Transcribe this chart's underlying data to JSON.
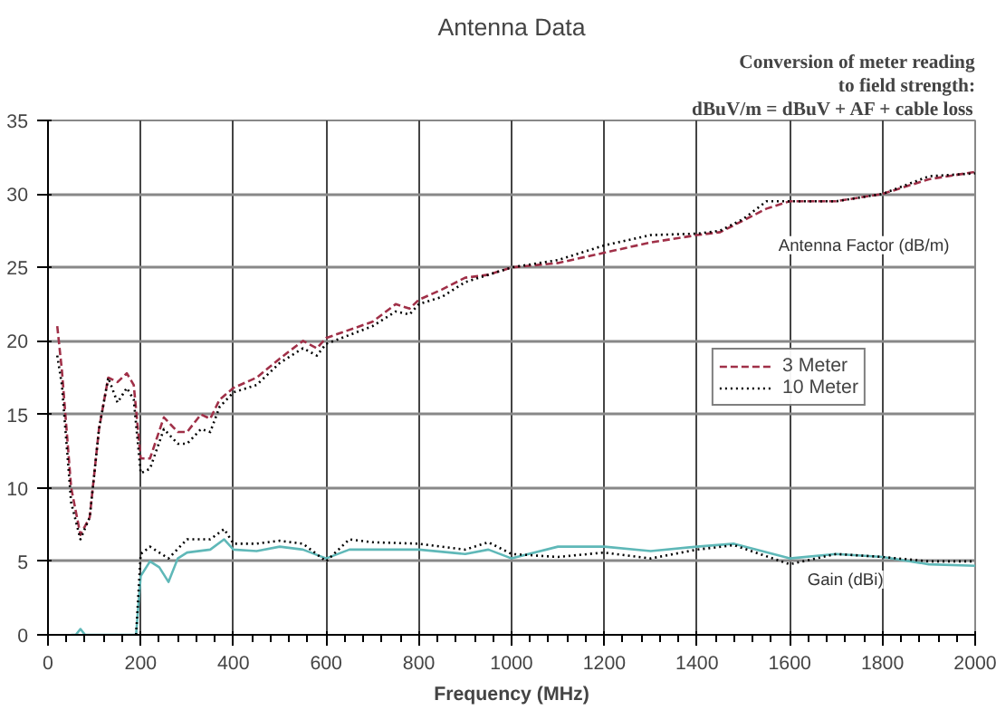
{
  "chart_data": {
    "type": "line",
    "title": "Antenna Data",
    "xlabel": "Frequency (MHz)",
    "xlim": [
      0,
      2000
    ],
    "ylim": [
      0,
      35
    ],
    "xticks": [
      0,
      200,
      400,
      600,
      800,
      1000,
      1200,
      1400,
      1600,
      1800,
      2000
    ],
    "yticks": [
      0,
      5,
      10,
      15,
      20,
      25,
      30,
      35
    ],
    "grid": true,
    "legend": "right",
    "marker": "none",
    "annotations": [
      "Conversion of meter reading",
      "to field strength:",
      "dBuV/m = dBuV + AF + cable loss",
      "Antenna Factor (dB/m)",
      "Gain (dBi)"
    ],
    "series": [
      {
        "name": "3 Meter",
        "color": "#a03048",
        "line_style": "dashed",
        "x": [
          20,
          30,
          50,
          70,
          90,
          110,
          130,
          150,
          170,
          185,
          200,
          220,
          250,
          280,
          300,
          330,
          350,
          370,
          400,
          450,
          500,
          550,
          580,
          600,
          700,
          750,
          780,
          800,
          850,
          900,
          950,
          1000,
          1100,
          1200,
          1300,
          1400,
          1450,
          1500,
          1550,
          1600,
          1700,
          1800,
          1900,
          2000
        ],
        "values": [
          21,
          18,
          10,
          6.8,
          8,
          14,
          17.5,
          17.2,
          17.8,
          17,
          12,
          12,
          14.8,
          13.8,
          13.8,
          15,
          14.7,
          16,
          16.8,
          17.5,
          18.8,
          20,
          19.5,
          20.2,
          21.3,
          22.5,
          22.2,
          22.8,
          23.5,
          24.3,
          24.5,
          25,
          25.3,
          26,
          26.7,
          27.2,
          27.4,
          28.2,
          29,
          29.5,
          29.5,
          30,
          31,
          31.5
        ]
      },
      {
        "name": "10 Meter",
        "color": "#000000",
        "line_style": "dotted",
        "x": [
          20,
          30,
          50,
          70,
          90,
          110,
          130,
          150,
          170,
          185,
          200,
          220,
          250,
          280,
          300,
          330,
          350,
          370,
          400,
          450,
          500,
          550,
          580,
          600,
          700,
          750,
          780,
          800,
          850,
          900,
          950,
          1000,
          1100,
          1200,
          1300,
          1400,
          1450,
          1500,
          1550,
          1600,
          1700,
          1800,
          1900,
          2000
        ],
        "values": [
          19,
          17,
          9,
          6.5,
          8,
          14,
          17.5,
          15.8,
          16.8,
          16,
          11,
          11.3,
          14,
          13,
          13,
          14,
          13.8,
          15.5,
          16.5,
          17,
          18.5,
          19.5,
          19,
          19.8,
          21,
          22,
          21.8,
          22.5,
          23,
          24,
          24.5,
          25,
          25.5,
          26.5,
          27.2,
          27.3,
          27.5,
          28.3,
          29.5,
          29.5,
          29.5,
          30,
          31.2,
          31.4
        ]
      },
      {
        "color": "#5fb8b8",
        "line_style": "solid",
        "x": [
          50,
          60,
          70,
          80,
          190,
          200,
          220,
          240,
          260,
          280,
          300,
          350,
          380,
          400,
          450,
          500,
          550,
          600,
          650,
          700,
          800,
          900,
          950,
          1000,
          1100,
          1200,
          1300,
          1400,
          1480,
          1600,
          1700,
          1800,
          1900,
          2000
        ],
        "values": [
          0,
          0,
          0.4,
          0,
          0,
          4,
          5,
          4.6,
          3.6,
          5.2,
          5.6,
          5.8,
          6.5,
          5.8,
          5.7,
          6,
          5.8,
          5.2,
          5.8,
          5.8,
          5.8,
          5.5,
          5.8,
          5.2,
          6,
          6,
          5.7,
          6,
          6.2,
          5.2,
          5.5,
          5.3,
          4.8,
          4.7
        ]
      },
      {
        "color": "#000000",
        "line_style": "dotted",
        "x": [
          190,
          200,
          220,
          260,
          300,
          350,
          380,
          400,
          450,
          500,
          550,
          600,
          650,
          700,
          800,
          900,
          950,
          1000,
          1100,
          1200,
          1300,
          1400,
          1480,
          1600,
          1700,
          1800,
          1900,
          2000
        ],
        "values": [
          0,
          5.5,
          6,
          5.2,
          6.5,
          6.5,
          7.2,
          6.2,
          6.2,
          6.4,
          6.2,
          5,
          6.5,
          6.3,
          6.2,
          5.8,
          6.3,
          5.5,
          5.3,
          5.6,
          5.2,
          5.8,
          6.1,
          4.8,
          5.5,
          5.3,
          5,
          5
        ]
      }
    ]
  }
}
